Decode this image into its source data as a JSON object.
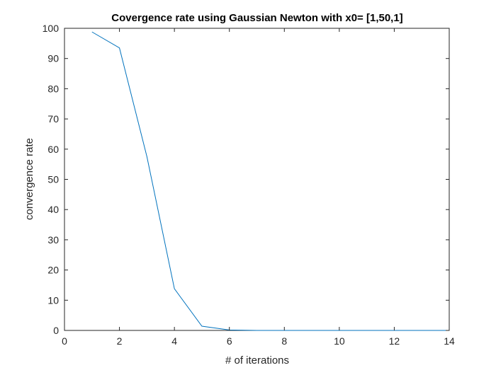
{
  "chart_data": {
    "type": "line",
    "title": "Covergence rate using Gaussian Newton with x0= [1,50,1]",
    "xlabel": "# of iterations",
    "ylabel": "convergence rate",
    "xlim": [
      0,
      14
    ],
    "ylim": [
      0,
      100
    ],
    "xticks": [
      0,
      2,
      4,
      6,
      8,
      10,
      12,
      14
    ],
    "yticks": [
      0,
      10,
      20,
      30,
      40,
      50,
      60,
      70,
      80,
      90,
      100
    ],
    "grid": false,
    "series": [
      {
        "x": [
          1,
          2,
          3,
          4,
          5,
          6,
          7,
          8,
          9,
          10,
          11,
          12,
          13,
          14
        ],
        "values": [
          98.8,
          93.5,
          57.5,
          13.8,
          1.4,
          0.15,
          0.0,
          0.0,
          0.0,
          0.0,
          0.0,
          0.0,
          0.0,
          0.0
        ],
        "color": "#0072BD"
      }
    ]
  },
  "colors": {
    "axis": "#262626",
    "line": "#0072BD",
    "background": "#ffffff"
  }
}
